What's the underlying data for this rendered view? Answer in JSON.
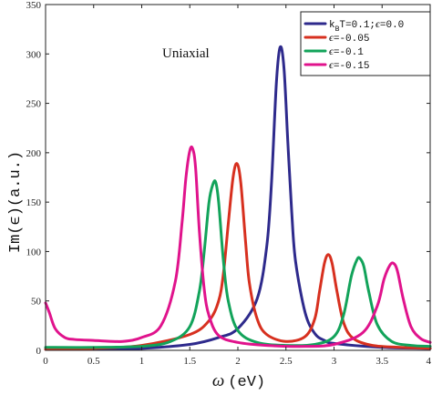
{
  "chart_data": {
    "type": "line",
    "title": "",
    "annotation": "Uniaxial",
    "xlabel": {
      "symbol": "ω",
      "unit": "(eV)"
    },
    "ylabel": "Im(ϵ)(a.u.)",
    "xlim": [
      0,
      4
    ],
    "ylim": [
      0,
      350
    ],
    "xticks": [
      "0",
      "0.5",
      "1",
      "1.5",
      "2",
      "2.5",
      "3",
      "3.5",
      "4"
    ],
    "yticks": [
      "0",
      "50",
      "100",
      "150",
      "200",
      "250",
      "300",
      "350"
    ],
    "grid": false,
    "legend_position": "top-right",
    "legend": [
      {
        "main": "k",
        "sub": "B",
        "rest": "T=0.1;",
        "eps": "ϵ",
        "value": "=0.0",
        "color": "#2e2a8c"
      },
      {
        "main": "",
        "sub": "",
        "rest": "",
        "eps": "ϵ",
        "value": "=-0.05",
        "color": "#d7301f"
      },
      {
        "main": "",
        "sub": "",
        "rest": "",
        "eps": "ϵ",
        "value": "=-0.1",
        "color": "#12a35a"
      },
      {
        "main": "",
        "sub": "",
        "rest": "",
        "eps": "ϵ",
        "value": "=-0.15",
        "color": "#e0138c"
      }
    ],
    "series": [
      {
        "color": "#2e2a8c",
        "x": [
          0,
          0.5,
          1.0,
          1.5,
          1.8,
          2.0,
          2.2,
          2.3,
          2.35,
          2.4,
          2.44,
          2.48,
          2.52,
          2.56,
          2.6,
          2.7,
          2.8,
          2.9,
          3.0,
          3.5,
          4.0
        ],
        "y": [
          1,
          1,
          2,
          6,
          13,
          22,
          52,
          105,
          170,
          270,
          307,
          285,
          210,
          140,
          90,
          38,
          17,
          10,
          7,
          3,
          2
        ]
      },
      {
        "color": "#d7301f",
        "x": [
          0,
          0.5,
          1.0,
          1.5,
          1.7,
          1.8,
          1.85,
          1.9,
          1.95,
          1.99,
          2.03,
          2.08,
          2.12,
          2.2,
          2.3,
          2.5,
          2.7,
          2.8,
          2.85,
          2.9,
          2.94,
          2.98,
          3.03,
          3.1,
          3.2,
          3.4,
          3.7,
          4.0
        ],
        "y": [
          1,
          2,
          5,
          16,
          30,
          50,
          78,
          128,
          175,
          189,
          170,
          110,
          68,
          32,
          16,
          9,
          14,
          32,
          60,
          88,
          97,
          88,
          60,
          28,
          12,
          5,
          3,
          2
        ]
      },
      {
        "color": "#12a35a",
        "x": [
          0,
          0.5,
          1.0,
          1.3,
          1.5,
          1.6,
          1.65,
          1.7,
          1.74,
          1.77,
          1.8,
          1.85,
          1.9,
          2.0,
          2.2,
          2.5,
          2.8,
          3.0,
          3.1,
          3.18,
          3.24,
          3.27,
          3.31,
          3.36,
          3.45,
          3.6,
          3.8,
          4.0
        ],
        "y": [
          3,
          3,
          4,
          9,
          24,
          60,
          100,
          150,
          168,
          170,
          150,
          90,
          50,
          20,
          8,
          5,
          6,
          14,
          36,
          75,
          92,
          93,
          85,
          60,
          26,
          9,
          5,
          4
        ]
      },
      {
        "color": "#e0138c",
        "x": [
          0,
          0.04,
          0.1,
          0.2,
          0.3,
          0.5,
          0.8,
          1.0,
          1.2,
          1.35,
          1.42,
          1.46,
          1.5,
          1.53,
          1.56,
          1.6,
          1.65,
          1.7,
          1.8,
          2.0,
          2.3,
          2.7,
          3.0,
          3.3,
          3.45,
          3.52,
          3.58,
          3.62,
          3.66,
          3.72,
          3.8,
          3.9,
          4.0
        ],
        "y": [
          48,
          38,
          22,
          13,
          11,
          10,
          9,
          13,
          25,
          70,
          130,
          175,
          202,
          204,
          185,
          120,
          62,
          35,
          15,
          8,
          5,
          4,
          6,
          18,
          45,
          72,
          86,
          88,
          80,
          52,
          24,
          12,
          8
        ]
      }
    ]
  }
}
